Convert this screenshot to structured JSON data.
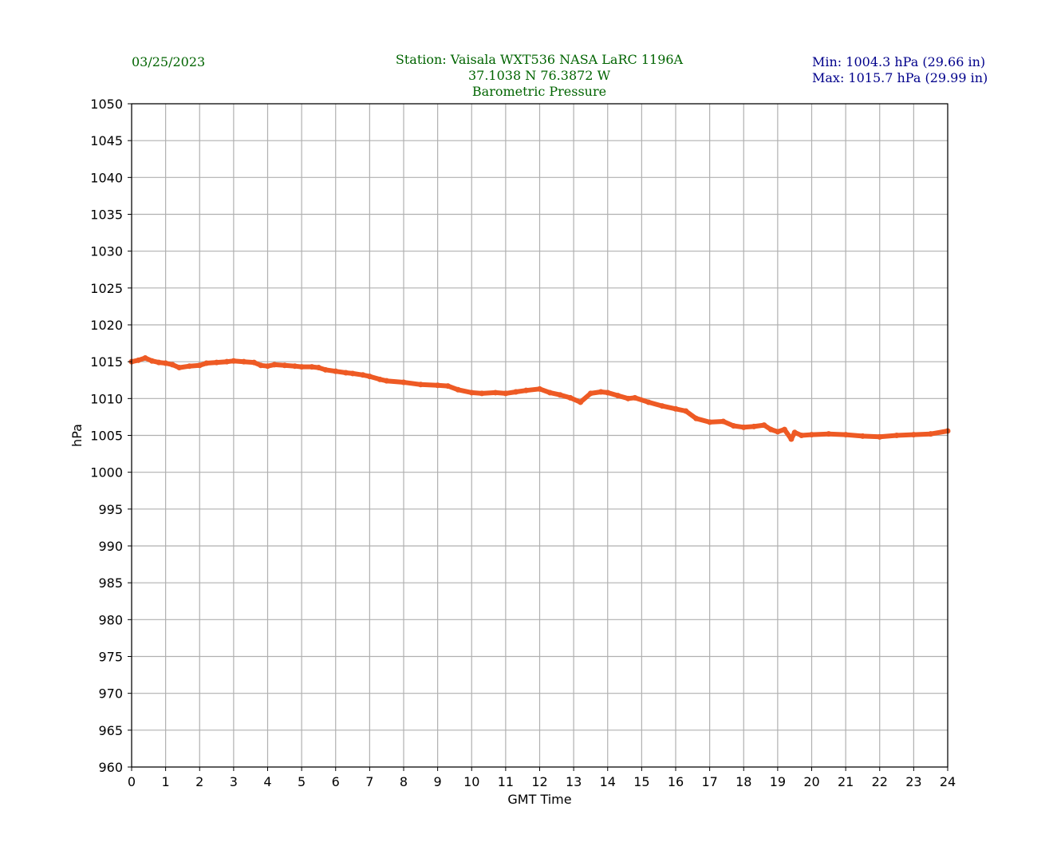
{
  "header": {
    "date": "03/25/2023",
    "station_line": "Station:  Vaisala WXT536  NASA LaRC 1196A",
    "coords_line": "37.1038 N 76.3872 W",
    "title_line": "Barometric Pressure",
    "min_line": "Min: 1004.3 hPa (29.66 in)",
    "max_line": "Max: 1015.7 hPa (29.99 in)"
  },
  "colors": {
    "header_text": "#006400",
    "minmax_text": "#00008b",
    "series": "#ee5a24",
    "grid": "#b0b0b0"
  },
  "chart_data": {
    "type": "line",
    "title": "Barometric Pressure",
    "xlabel": "GMT Time",
    "ylabel": "hPa",
    "xlim": [
      0,
      24
    ],
    "ylim": [
      960,
      1050
    ],
    "grid": true,
    "x_ticks": [
      0,
      1,
      2,
      3,
      4,
      5,
      6,
      7,
      8,
      9,
      10,
      11,
      12,
      13,
      14,
      15,
      16,
      17,
      18,
      19,
      20,
      21,
      22,
      23,
      24
    ],
    "y_ticks": [
      960,
      965,
      970,
      975,
      980,
      985,
      990,
      995,
      1000,
      1005,
      1010,
      1015,
      1020,
      1025,
      1030,
      1035,
      1040,
      1045,
      1050
    ],
    "series": [
      {
        "x": [
          0,
          0.2,
          0.4,
          0.6,
          0.8,
          1.0,
          1.2,
          1.4,
          1.7,
          2.0,
          2.2,
          2.5,
          2.8,
          3.0,
          3.3,
          3.6,
          3.8,
          4.0,
          4.2,
          4.5,
          4.8,
          5.0,
          5.3,
          5.5,
          5.7,
          6.0,
          6.3,
          6.5,
          6.8,
          7.0,
          7.3,
          7.5,
          8.0,
          8.5,
          9.0,
          9.3,
          9.6,
          10.0,
          10.3,
          10.7,
          11.0,
          11.3,
          11.6,
          12.0,
          12.3,
          12.6,
          12.9,
          13.2,
          13.5,
          13.8,
          14.0,
          14.3,
          14.6,
          14.8,
          15.2,
          15.6,
          16.0,
          16.3,
          16.6,
          17.0,
          17.4,
          17.7,
          18.0,
          18.3,
          18.6,
          18.8,
          19.0,
          19.2,
          19.4,
          19.5,
          19.7,
          20.0,
          20.5,
          21.0,
          21.5,
          22.0,
          22.5,
          23.0,
          23.5,
          24.0
        ],
        "values": [
          1015.0,
          1015.2,
          1015.5,
          1015.1,
          1014.9,
          1014.8,
          1014.6,
          1014.2,
          1014.4,
          1014.5,
          1014.8,
          1014.9,
          1015.0,
          1015.1,
          1015.0,
          1014.9,
          1014.5,
          1014.4,
          1014.6,
          1014.5,
          1014.4,
          1014.3,
          1014.3,
          1014.2,
          1013.9,
          1013.7,
          1013.5,
          1013.4,
          1013.2,
          1013.0,
          1012.6,
          1012.4,
          1012.2,
          1011.9,
          1011.8,
          1011.7,
          1011.2,
          1010.8,
          1010.7,
          1010.8,
          1010.7,
          1010.9,
          1011.1,
          1011.3,
          1010.8,
          1010.5,
          1010.1,
          1009.5,
          1010.7,
          1010.9,
          1010.8,
          1010.4,
          1010.0,
          1010.1,
          1009.5,
          1009.0,
          1008.6,
          1008.3,
          1007.3,
          1006.8,
          1006.9,
          1006.3,
          1006.1,
          1006.2,
          1006.4,
          1005.8,
          1005.5,
          1005.8,
          1004.5,
          1005.4,
          1005.0,
          1005.1,
          1005.2,
          1005.1,
          1004.9,
          1004.8,
          1005.0,
          1005.1,
          1005.2,
          1005.6
        ]
      }
    ]
  }
}
